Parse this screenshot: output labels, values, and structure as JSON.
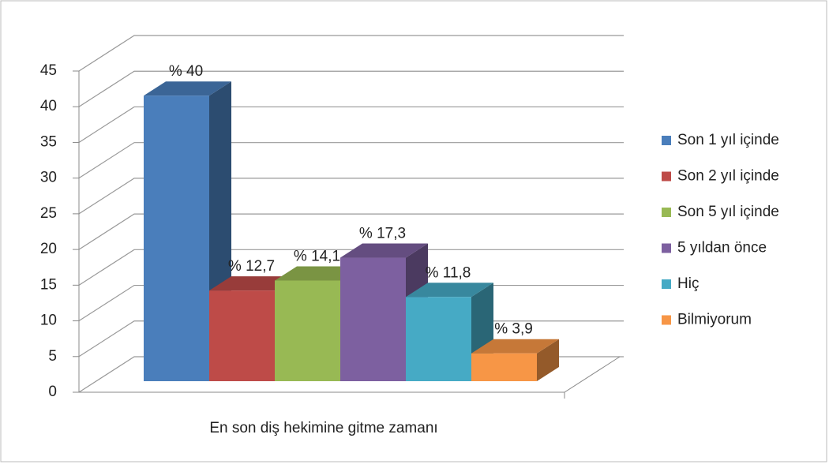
{
  "chart_data": {
    "type": "bar3d",
    "categories": [
      "En son diş hekimine gitme zamanı"
    ],
    "series": [
      {
        "name": "Son 1 yıl içinde",
        "color": "#4a7ebb",
        "values": [
          40
        ],
        "value_labels": [
          "% 40"
        ]
      },
      {
        "name": "Son 2 yıl içinde",
        "color": "#be4b48",
        "values": [
          12.7
        ],
        "value_labels": [
          "% 12,7"
        ]
      },
      {
        "name": "Son 5 yıl içinde",
        "color": "#98b954",
        "values": [
          14.1
        ],
        "value_labels": [
          "% 14,1"
        ]
      },
      {
        "name": "5 yıldan önce",
        "color": "#7d60a0",
        "values": [
          17.3
        ],
        "value_labels": [
          "% 17,3"
        ]
      },
      {
        "name": "Hiç",
        "color": "#46aac5",
        "values": [
          11.8
        ],
        "value_labels": [
          "% 11,8"
        ]
      },
      {
        "name": "Bilmiyorum",
        "color": "#f79646",
        "values": [
          3.9
        ],
        "value_labels": [
          "% 3,9"
        ]
      }
    ],
    "ylim": [
      0,
      45
    ],
    "yticks": [
      0,
      5,
      10,
      15,
      20,
      25,
      30,
      35,
      40,
      45
    ],
    "grid": true,
    "legend": "right"
  }
}
